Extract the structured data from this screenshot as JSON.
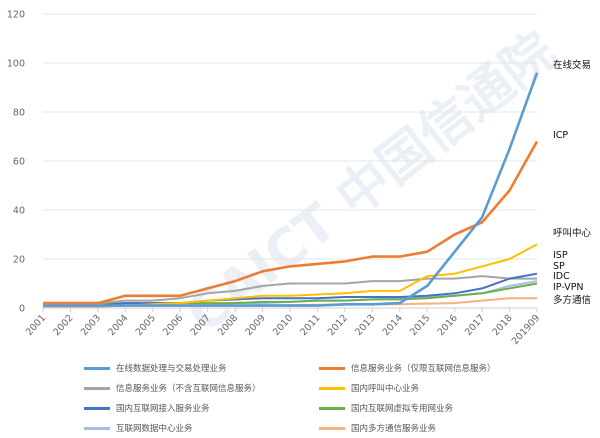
{
  "chart_data": {
    "type": "line",
    "x": [
      "2001",
      "2002",
      "2003",
      "2004",
      "2005",
      "2006",
      "2007",
      "2008",
      "2009",
      "2010",
      "2011",
      "2012",
      "2013",
      "2014",
      "2015",
      "2016",
      "2017",
      "2018",
      "201909"
    ],
    "ylim": [
      0,
      120
    ],
    "yticks": [
      0,
      20,
      40,
      60,
      80,
      100,
      120
    ],
    "grid": "horizontal",
    "legend_position": "bottom",
    "watermark": "CAICT 中国信通院",
    "end_labels": [
      {
        "series": 0,
        "text": "在线交易"
      },
      {
        "series": 1,
        "text": "ICP"
      },
      {
        "series": 3,
        "text": "呼叫中心"
      },
      {
        "series": 4,
        "text": "ISP"
      },
      {
        "series": 2,
        "text": "SP"
      },
      {
        "series": 6,
        "text": "IDC"
      },
      {
        "series": 5,
        "text": "IP-VPN"
      },
      {
        "series": 7,
        "text": "多方通信"
      }
    ],
    "series": [
      {
        "name": "在线数据处理与交易处理业务",
        "color": "#5b9bd5",
        "values": [
          1,
          1,
          1,
          1,
          1,
          1,
          1,
          1,
          1,
          1,
          1,
          1.5,
          1.5,
          2,
          9,
          23,
          37,
          65,
          96
        ]
      },
      {
        "name": "信息服务业务（仅限互联网信息服务）",
        "color": "#ed7d31",
        "values": [
          2,
          2,
          2,
          5,
          5,
          5,
          8,
          11,
          15,
          17,
          18,
          19,
          21,
          21,
          23,
          30,
          35,
          48,
          68
        ]
      },
      {
        "name": "信息服务业务（不含互联网信息服务）",
        "color": "#a5a5a5",
        "values": [
          2,
          2,
          2,
          3,
          3,
          4,
          6,
          7,
          9,
          10,
          10,
          10,
          11,
          11,
          12,
          12,
          13,
          12,
          12
        ]
      },
      {
        "name": "国内呼叫中心业务",
        "color": "#ffc000",
        "values": [
          1,
          1,
          1,
          1,
          1.5,
          2,
          3,
          4,
          5,
          5,
          5.5,
          6,
          7,
          7,
          13,
          14,
          17,
          20,
          26
        ]
      },
      {
        "name": "国内互联网接入服务业务",
        "color": "#4472c4",
        "values": [
          1,
          1,
          1,
          2,
          2,
          2,
          3,
          3.5,
          4,
          4,
          4,
          4.5,
          4.5,
          4.5,
          5,
          6,
          8,
          12,
          14
        ]
      },
      {
        "name": "国内互联网虚拟专用网业务",
        "color": "#70ad47",
        "values": [
          2,
          2,
          2,
          2,
          2,
          2,
          2,
          2,
          2.5,
          2.5,
          3,
          3,
          3.5,
          3.5,
          4,
          5,
          6,
          8,
          10
        ]
      },
      {
        "name": "互联网数据中心业务",
        "color": "#9dc3e6",
        "values": [
          1,
          1,
          1,
          1,
          1,
          1,
          1.5,
          2,
          2,
          2.5,
          3,
          3,
          3.5,
          4,
          4.5,
          5,
          6,
          9,
          11
        ]
      },
      {
        "name": "国内多方通信服务业务",
        "color": "#f4b183",
        "values": [
          0.5,
          0.5,
          0.5,
          1,
          1,
          1,
          1,
          1,
          1.2,
          1.2,
          1.3,
          1.3,
          1.5,
          1.5,
          1.8,
          2,
          3,
          4,
          4
        ]
      }
    ]
  }
}
